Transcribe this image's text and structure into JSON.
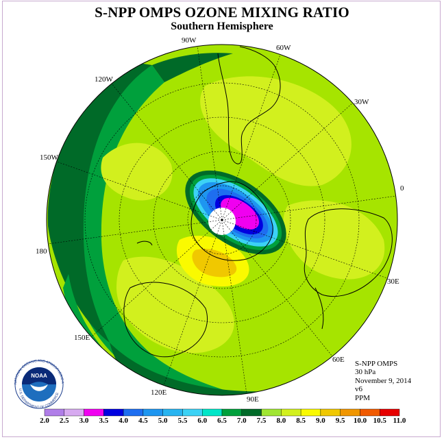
{
  "title": "S-NPP OMPS OZONE MIXING RATIO",
  "subtitle": "Southern Hemisphere",
  "logo": {
    "text": "NOAA",
    "ring_text": "NATIONAL OCEANIC AND ATMOSPHERIC ADMINISTRATION",
    "ring_text_bottom": "U.S. DEPARTMENT OF COMMERCE"
  },
  "longitude_labels": [
    "90W",
    "60W",
    "30W",
    "0",
    "30E",
    "60E",
    "90E",
    "120E",
    "150E",
    "180",
    "150W",
    "120W"
  ],
  "info": {
    "instrument": "S-NPP OMPS",
    "level": "30 hPa",
    "date": "November 9, 2014",
    "version": "v6",
    "units": "PPM"
  },
  "colorbar": {
    "labels": [
      "2.0",
      "2.5",
      "3.0",
      "3.5",
      "4.0",
      "4.5",
      "5.0",
      "5.5",
      "6.0",
      "6.5",
      "7.0",
      "7.5",
      "8.0",
      "8.5",
      "9.0",
      "9.5",
      "10.0",
      "10.5",
      "11.0"
    ],
    "colors": [
      "#b07ee8",
      "#d7aaf0",
      "#f000f0",
      "#0000e0",
      "#1e6ef0",
      "#1e96f0",
      "#28b4f0",
      "#3cd2f5",
      "#00e6c8",
      "#00a03c",
      "#006a28",
      "#a0e632",
      "#d2f01e",
      "#fafa00",
      "#f0c800",
      "#f09600",
      "#f05a00",
      "#e60000",
      "#8c5a3c"
    ]
  },
  "map_colors": {
    "ocean_base": "#a6e400",
    "band_dark": "#006a28",
    "band_mid": "#00a03c",
    "light": "#d2f01e",
    "yellow": "#fafa00",
    "orange": "#f0c800"
  }
}
